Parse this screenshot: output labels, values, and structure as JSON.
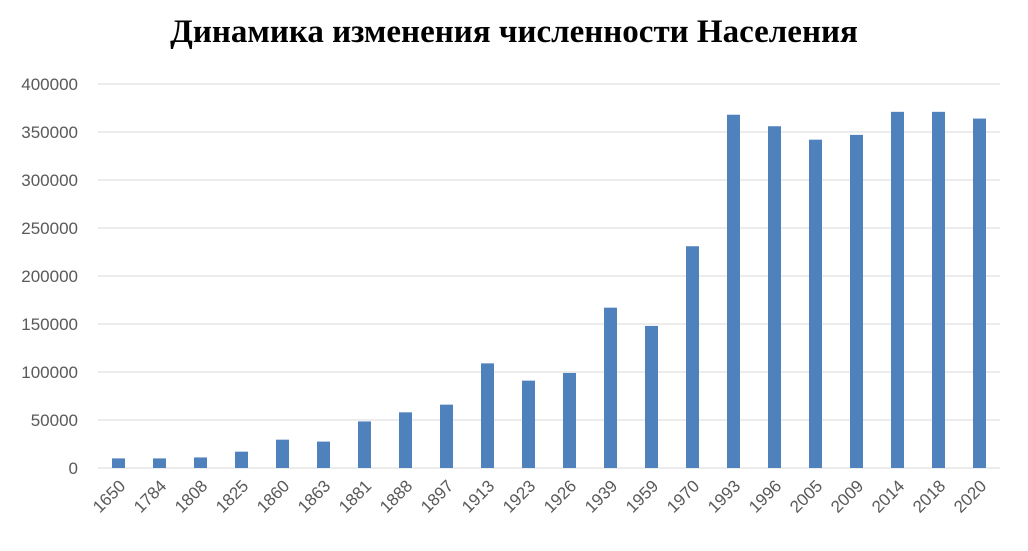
{
  "chart_data": {
    "type": "bar",
    "title": "Динамика изменения численности Населения",
    "xlabel": "",
    "ylabel": "",
    "ylim": [
      0,
      400000
    ],
    "yticks": [
      0,
      50000,
      100000,
      150000,
      200000,
      250000,
      300000,
      350000,
      400000
    ],
    "grid": true,
    "legend": "none",
    "bar_color": "#4f81bd",
    "categories": [
      "1650",
      "1784",
      "1808",
      "1825",
      "1860",
      "1863",
      "1881",
      "1888",
      "1897",
      "1913",
      "1923",
      "1926",
      "1939",
      "1959",
      "1970",
      "1993",
      "1996",
      "2005",
      "2009",
      "2014",
      "2018",
      "2020"
    ],
    "values": [
      10000,
      10000,
      11000,
      17000,
      29500,
      27500,
      48500,
      58000,
      66000,
      109000,
      91000,
      99000,
      167000,
      148000,
      231000,
      368000,
      356000,
      342000,
      347000,
      371000,
      371000,
      364000
    ]
  }
}
